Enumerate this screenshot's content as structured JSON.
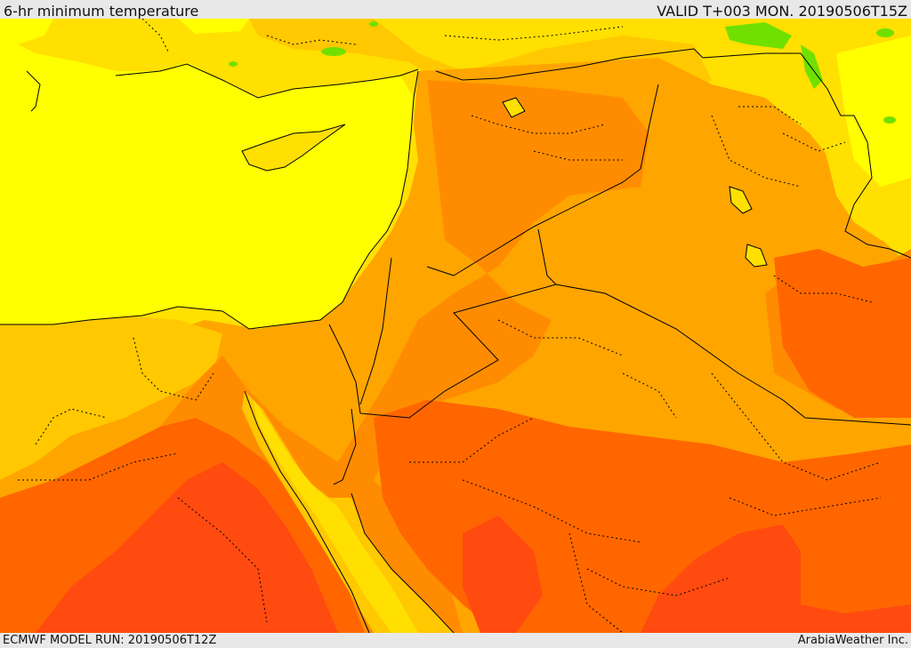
{
  "header": {
    "title": "6-hr minimum temperature",
    "valid": "VALID T+003 MON. 20190506T15Z"
  },
  "footer": {
    "model_run": "ECMWF MODEL RUN: 20190506T12Z",
    "credit": "ArabiaWeather Inc."
  },
  "colors": {
    "sea": "#ffff00",
    "land_yellow": "#ffe000",
    "gold": "#ffc800",
    "orange_light": "#ffa500",
    "orange": "#ff8c00",
    "orange_dark": "#ff6600",
    "red_orange": "#ff4a10",
    "green": "#70e000",
    "border": "#000000"
  }
}
